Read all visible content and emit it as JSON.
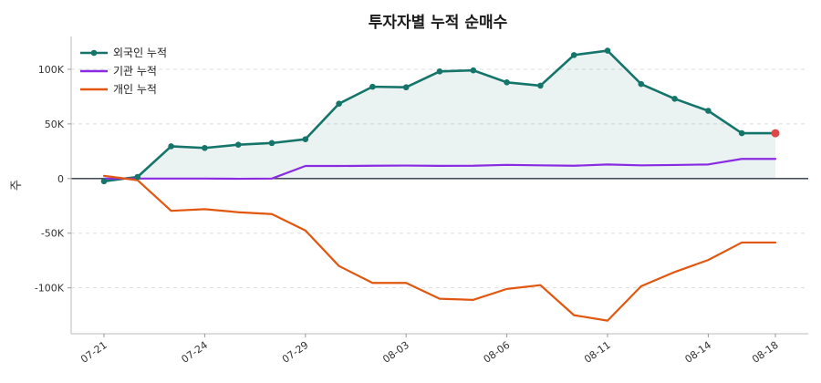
{
  "chart_data": {
    "type": "line",
    "title": "투자자별 누적 순매수",
    "xlabel": "",
    "ylabel": "주",
    "ylim": [
      -142000,
      130000
    ],
    "yticks": [
      -100000,
      -50000,
      0,
      50000,
      100000
    ],
    "ytick_labels": [
      "-100K",
      "-50K",
      "0",
      "50K",
      "100K"
    ],
    "x": [
      "07-21",
      "07-22",
      "07-23",
      "07-24",
      "07-25",
      "07-28",
      "07-29",
      "07-30",
      "07-31",
      "08-01",
      "08-03",
      "08-04",
      "08-05",
      "08-06",
      "08-07",
      "08-08",
      "08-11",
      "08-12",
      "08-13",
      "08-14",
      "08-18"
    ],
    "xtick_indices": [
      0,
      3,
      6,
      9,
      12,
      15,
      18,
      20
    ],
    "xtick_labels": [
      "07-21",
      "07-24",
      "07-29",
      "08-03",
      "08-06",
      "08-11",
      "08-14",
      "08-18"
    ],
    "grid": "horizontal-dashed",
    "legend_position": "top-left",
    "series": [
      {
        "name": "외국인 누적",
        "color": "#16756b",
        "markers": true,
        "area_fill": true,
        "last_point_color": "#e04848",
        "values": [
          -2500,
          1500,
          29500,
          28000,
          31000,
          32500,
          36000,
          68500,
          84000,
          83500,
          98000,
          99000,
          88000,
          85000,
          113000,
          117000,
          86500,
          73000,
          62000,
          41500,
          41500
        ]
      },
      {
        "name": "기관 누적",
        "color": "#8a2be2",
        "markers": false,
        "values": [
          0,
          0,
          0,
          0,
          -200,
          0,
          11500,
          11500,
          11700,
          11900,
          11600,
          11700,
          12500,
          12100,
          11700,
          12900,
          12100,
          12400,
          12900,
          18000,
          18000
        ]
      },
      {
        "name": "개인 누적",
        "color": "#e2570f",
        "markers": false,
        "values": [
          2500,
          -1500,
          -29500,
          -28000,
          -30800,
          -32500,
          -47500,
          -80000,
          -95500,
          -95500,
          -110000,
          -111000,
          -101000,
          -97500,
          -125000,
          -130000,
          -98500,
          -85500,
          -74500,
          -58500,
          -58500
        ]
      }
    ]
  }
}
